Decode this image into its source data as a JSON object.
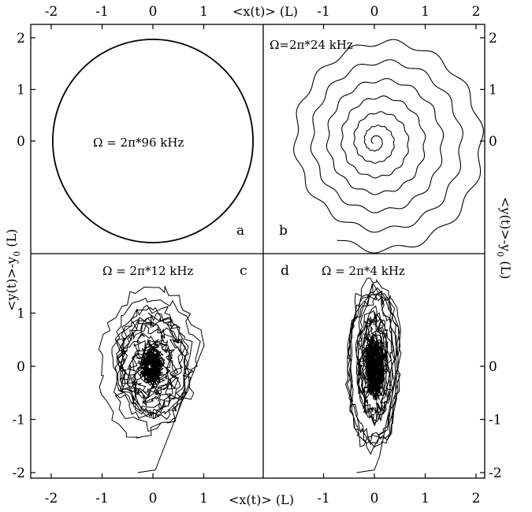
{
  "chart_data": [
    {
      "panel": "a",
      "type": "line",
      "label": "a",
      "annotation": "Ω = 2π*96 kHz",
      "description_shape": "circle",
      "circle": {
        "cx": 0.0,
        "cy": 0.0,
        "r": 1.97
      },
      "xlim": [
        -2.3,
        2.2
      ],
      "ylim": [
        -2.2,
        2.2
      ]
    },
    {
      "panel": "b",
      "type": "line",
      "label": "b",
      "annotation": "Ω=2π*24 kHz",
      "description_shape": "inward spiral",
      "spiral": {
        "r_start": 2.05,
        "r_end": 0.05,
        "turns": 7,
        "wobble": 0.03
      },
      "xlim": [
        -2.3,
        2.2
      ],
      "ylim": [
        -2.2,
        2.2
      ]
    },
    {
      "panel": "c",
      "type": "line",
      "label": "c",
      "annotation": "Ω = 2π*12 kHz",
      "description_shape": "noisy trajectory",
      "start": [
        -0.2,
        -2.0
      ],
      "xlim": [
        -2.3,
        2.2
      ],
      "ylim": [
        -2.2,
        2.2
      ]
    },
    {
      "panel": "d",
      "type": "line",
      "label": "d",
      "annotation": "Ω = 2π*4 kHz",
      "description_shape": "noisy elongated trajectory",
      "start": [
        -0.4,
        -2.0
      ],
      "xlim": [
        -2.3,
        2.2
      ],
      "ylim": [
        -2.2,
        2.2
      ]
    }
  ],
  "axes": {
    "top_xlabel": "<x(t)> (L)",
    "bottom_xlabel": "<x(t)> (L)",
    "left_ylabel": "<y(t)>-y",
    "left_ylabel_sub": "0",
    "left_ylabel_unit": " (L)",
    "right_ylabel": "<y(t)>-y",
    "right_ylabel_sub": "0",
    "right_ylabel_unit": " (L)",
    "x_ticks_left": [
      "-2",
      "-1",
      "0",
      "1"
    ],
    "x_ticks_right": [
      "-1",
      "0",
      "1",
      "2"
    ],
    "x_tick_values_left": [
      -2,
      -1,
      0,
      1
    ],
    "x_tick_values_right": [
      -1,
      0,
      1,
      2
    ],
    "y_ticks_top_left": [
      "2",
      "1",
      "0"
    ],
    "y_tick_values_top_left": [
      2,
      1,
      0
    ],
    "y_ticks_top_right": [
      "2",
      "1",
      "0"
    ],
    "y_tick_values_top_right": [
      2,
      1,
      0
    ],
    "y_ticks_bottom_left": [
      "1",
      "0",
      "-1",
      "-2"
    ],
    "y_tick_values_bottom_left": [
      1,
      0,
      -1,
      -2
    ],
    "y_ticks_bottom_right": [
      "0",
      "-1",
      "-2"
    ],
    "y_tick_values_bottom_right": [
      0,
      -1,
      -2
    ]
  }
}
